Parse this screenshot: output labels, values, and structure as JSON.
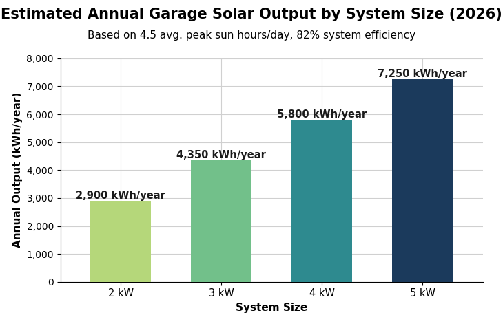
{
  "chart_data": {
    "type": "bar",
    "title": "Estimated Annual Garage Solar Output by System Size (2026)",
    "subtitle": "Based on 4.5 avg. peak sun hours/day, 82% system efficiency",
    "x_label": "System Size",
    "y_label": "Annual Output (kWh/year)",
    "categories": [
      "2 kW",
      "3 kW",
      "4 kW",
      "5 kW"
    ],
    "values": [
      2900,
      4350,
      5800,
      7250
    ],
    "value_labels": [
      "2,900 kWh/year",
      "4,350 kWh/year",
      "5,800 kWh/year",
      "7,250 kWh/year"
    ],
    "data_labels": true,
    "colors": [
      "#b5d77a",
      "#72c08a",
      "#2e8a8f",
      "#1b3a5c"
    ],
    "ylim": [
      0,
      8000
    ],
    "yticks": [
      0,
      {
        "value": 1000,
        "label": "1,000"
      },
      {
        "value": 2000,
        "label": "2,000"
      },
      {
        "value": 3000,
        "label": "3,000"
      },
      {
        "value": 4000,
        "label": "4,000"
      },
      {
        "value": 5000,
        "label": "5,000"
      },
      {
        "value": 6000,
        "label": "6,000"
      },
      {
        "value": 7000,
        "label": "7,000"
      },
      {
        "value": 8000,
        "label": "8,000"
      }
    ],
    "grid": true
  }
}
